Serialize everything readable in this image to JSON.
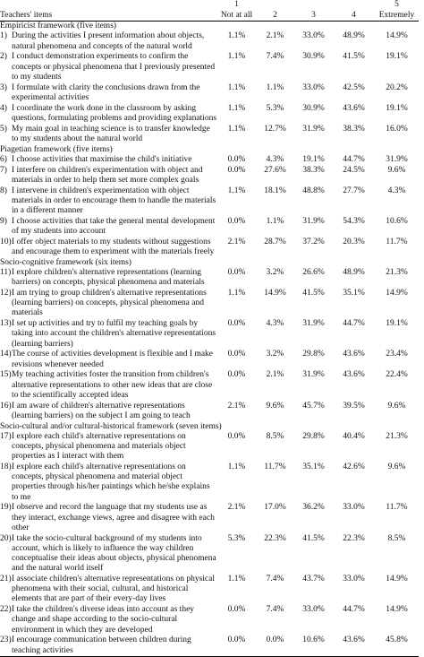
{
  "header": {
    "items_label": "Teachers' items",
    "scale": [
      {
        "num": "1",
        "label": "Not at all"
      },
      {
        "num": "",
        "label": "2"
      },
      {
        "num": "",
        "label": "3"
      },
      {
        "num": "",
        "label": "4"
      },
      {
        "num": "5",
        "label": "Extremely"
      }
    ]
  },
  "sections": [
    {
      "title": "Empiricist framework (five items)",
      "items": [
        {
          "num": "1)",
          "text": "During the activities I present information about objects, natural phenomena and concepts of the natural world",
          "values": [
            "1.1%",
            "2.1%",
            "33.0%",
            "48.9%",
            "14.9%"
          ]
        },
        {
          "num": "2)",
          "text": "I conduct demonstration experiments to confirm the concepts or physical phenomena that I previously presented to my students",
          "values": [
            "1.1%",
            "7.4%",
            "30.9%",
            "41.5%",
            "19.1%"
          ]
        },
        {
          "num": "3)",
          "text": "I formulate with clarity the conclusions drawn from the experimental activities",
          "values": [
            "1.1%",
            "1.1%",
            "33.0%",
            "42.5%",
            "20.2%"
          ]
        },
        {
          "num": "4)",
          "text": "I coordinate the work done in the classroom by asking questions, formulating problems and providing explanations",
          "values": [
            "1.1%",
            "5.3%",
            "30.9%",
            "43.6%",
            "19.1%"
          ]
        },
        {
          "num": "5)",
          "text": "My main goal in teaching science is to transfer knowledge to my students about the natural world",
          "values": [
            "1.1%",
            "12.7%",
            "31.9%",
            "38.3%",
            "16.0%"
          ]
        }
      ]
    },
    {
      "title": "Piagetian framework (five items)",
      "items": [
        {
          "num": "6)",
          "text": "I choose activities that maximise the child's initiative",
          "values": [
            "0.0%",
            "4.3%",
            "19.1%",
            "44.7%",
            "31.9%"
          ]
        },
        {
          "num": "7)",
          "text": "I interfere on children's experimentation with object and materials in order to help them set more complex goals",
          "values": [
            "0.0%",
            "27.6%",
            "38.3%",
            "24.5%",
            "9.6%"
          ]
        },
        {
          "num": "8)",
          "text": "I intervene in children's experimentation with object materials in order to encourage them to handle the materials in a different manner",
          "values": [
            "1.1%",
            "18.1%",
            "48.8%",
            "27.7%",
            "4.3%"
          ]
        },
        {
          "num": "9)",
          "text": "I choose activities that take the general mental development of my students into account",
          "values": [
            "0.0%",
            "1.1%",
            "31.9%",
            "54.3%",
            "10.6%"
          ]
        },
        {
          "num": "10)",
          "text": "I offer object materials to my students without suggestions and encourage them to experiment with the materials freely",
          "values": [
            "2.1%",
            "28.7%",
            "37.2%",
            "20.3%",
            "11.7%"
          ]
        }
      ]
    },
    {
      "title": "Socio-cognitive framework (six items)",
      "items": [
        {
          "num": "11)",
          "text": "I explore children's alternative representations (learning barriers) on concepts, physical phenomena and materials",
          "values": [
            "0.0%",
            "3.2%",
            "26.6%",
            "48.9%",
            "21.3%"
          ]
        },
        {
          "num": "12)",
          "text": "I am trying to group children's alternative representations (learning barriers) on concepts, physical phenomena and materials",
          "values": [
            "1.1%",
            "14.9%",
            "41.5%",
            "35.1%",
            "14.9%"
          ]
        },
        {
          "num": "13)",
          "text": "I set up activities and try to fulfil my teaching goals by taking into account the children's alternative representations (learning barriers)",
          "values": [
            "0.0%",
            "4.3%",
            "31.9%",
            "44.7%",
            "19.1%"
          ]
        },
        {
          "num": "14)",
          "text": "The course of activities development is flexible and I make revisions whenever needed",
          "values": [
            "0.0%",
            "3.2%",
            "29.8%",
            "43.6%",
            "23.4%"
          ]
        },
        {
          "num": "15)",
          "text": "My teaching activities foster the transition from children's alternative representations to other new ideas that are close to the scientifically accepted ideas",
          "values": [
            "0.0%",
            "2.1%",
            "31.9%",
            "43.6%",
            "22.4%"
          ]
        },
        {
          "num": "16)",
          "text": "I am aware of children's alternative representations (learning barriers) on the subject I am going to teach",
          "values": [
            "2.1%",
            "9.6%",
            "45.7%",
            "39.5%",
            "9.6%"
          ]
        }
      ]
    },
    {
      "title": "Socio-cultural and/or cultural-historical framework (seven items)",
      "items": [
        {
          "num": "17)",
          "text": "I explore each child's alternative representations on concepts, physical phenomena and materials object properties as I interact with them",
          "values": [
            "0.0%",
            "8.5%",
            "29.8%",
            "40.4%",
            "21.3%"
          ]
        },
        {
          "num": "18)",
          "text": "I explore each child's alternative representations on concepts, physical phenomena and material object properties through his/her paintings which he/she explains to me",
          "values": [
            "1.1%",
            "11.7%",
            "35.1%",
            "42.6%",
            "9.6%"
          ]
        },
        {
          "num": "19)",
          "text": "I observe and record the language that my students use as they interact, exchange views, agree and disagree with each other",
          "values": [
            "2.1%",
            "17.0%",
            "36.2%",
            "33.0%",
            "11.7%"
          ]
        },
        {
          "num": "20)",
          "text": "I take the socio-cultural background of my students into account, which is likely to influence the way children conceptualise their ideas about objects, physical phenomena and the natural world itself",
          "values": [
            "5.3%",
            "22.3%",
            "41.5%",
            "22.3%",
            "8.5%"
          ]
        },
        {
          "num": "21)",
          "text": "I associate children's alternative representations on physical phenomena with their social, cultural, and historical elements that are part of their every-day lives",
          "values": [
            "1.1%",
            "7.4%",
            "43.7%",
            "33.0%",
            "14.9%"
          ]
        },
        {
          "num": "22)",
          "text": "I take the children's diverse ideas into account as they change and shape according to the socio-cultural environment in which they are developed",
          "values": [
            "0.0%",
            "7.4%",
            "33.0%",
            "44.7%",
            "14.9%"
          ]
        },
        {
          "num": "23)",
          "text": "I encourage communication between children during teaching activities",
          "values": [
            "0.0%",
            "0.0%",
            "10.6%",
            "43.6%",
            "45.8%"
          ]
        }
      ]
    }
  ]
}
